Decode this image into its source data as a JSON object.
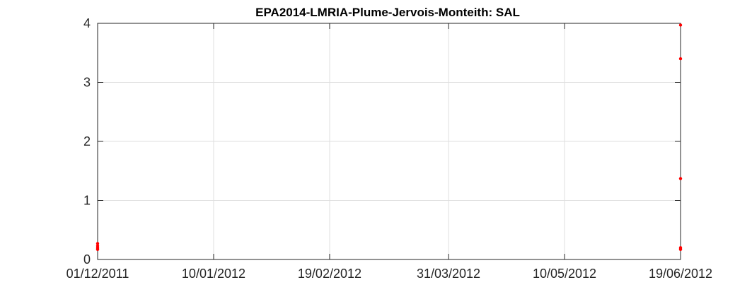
{
  "chart_data": {
    "type": "scatter",
    "title": "EPA2014-LMRIA-Plume-Jervois-Monteith: SAL",
    "xlabel": "",
    "ylabel": "",
    "x_ticks": [
      "01/12/2011",
      "10/01/2012",
      "19/02/2012",
      "31/03/2012",
      "10/05/2012",
      "19/06/2012"
    ],
    "y_ticks": [
      "0",
      "1",
      "2",
      "3",
      "4"
    ],
    "xlim": [
      "01/12/2011",
      "19/06/2012"
    ],
    "ylim": [
      0,
      4
    ],
    "grid": true,
    "series": [
      {
        "color": "#ff0000",
        "points": [
          {
            "x": "01/12/2011",
            "y": 0.27
          },
          {
            "x": "01/12/2011",
            "y": 0.23
          },
          {
            "x": "01/12/2011",
            "y": 0.2
          },
          {
            "x": "01/12/2011",
            "y": 0.18
          },
          {
            "x": "01/12/2011",
            "y": 0.17
          },
          {
            "x": "19/06/2012",
            "y": 3.97
          },
          {
            "x": "19/06/2012",
            "y": 3.4
          },
          {
            "x": "19/06/2012",
            "y": 1.37
          },
          {
            "x": "19/06/2012",
            "y": 0.2
          },
          {
            "x": "19/06/2012",
            "y": 0.18
          },
          {
            "x": "19/06/2012",
            "y": 0.17
          }
        ]
      }
    ]
  }
}
